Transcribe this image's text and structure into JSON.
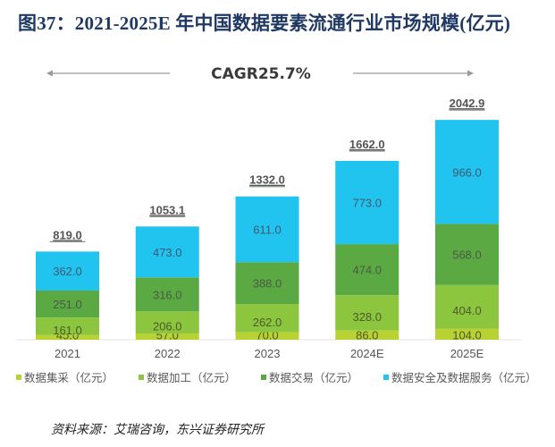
{
  "title": "图37：2021-2025E 年中国数据要素流通行业市场规模(亿元)",
  "source": "资料来源：艾瑞咨询，东兴证券研究所",
  "chart_data": {
    "type": "bar",
    "stacked": true,
    "title": "2021-2025E 年中国数据要素流通行业市场规模(亿元)",
    "annotation": "CAGR25.7%",
    "xlabel": "",
    "ylabel": "",
    "categories": [
      "2021",
      "2022",
      "2023",
      "2024E",
      "2025E"
    ],
    "series": [
      {
        "name": "数据集采（亿元）",
        "color": "#b8d234",
        "values": [
          45.0,
          57.0,
          70.0,
          86.0,
          104.0
        ]
      },
      {
        "name": "数据加工（亿元）",
        "color": "#8cc63e",
        "values": [
          161.0,
          206.0,
          262.0,
          328.0,
          404.0
        ]
      },
      {
        "name": "数据交易（亿元）",
        "color": "#5aa943",
        "values": [
          251.0,
          316.0,
          388.0,
          474.0,
          568.0
        ]
      },
      {
        "name": "数据安全及数据服务（亿元）",
        "color": "#21c3ef",
        "values": [
          362.0,
          473.0,
          611.0,
          773.0,
          966.0
        ]
      }
    ],
    "totals": [
      "819.0",
      "1053.1",
      "1332.0",
      "1662.0",
      "2042.9"
    ],
    "total_values": [
      819.0,
      1053.1,
      1332.0,
      1662.0,
      2042.9
    ],
    "ylim": [
      0,
      2042.9
    ],
    "grid": false,
    "legend_position": "bottom"
  }
}
